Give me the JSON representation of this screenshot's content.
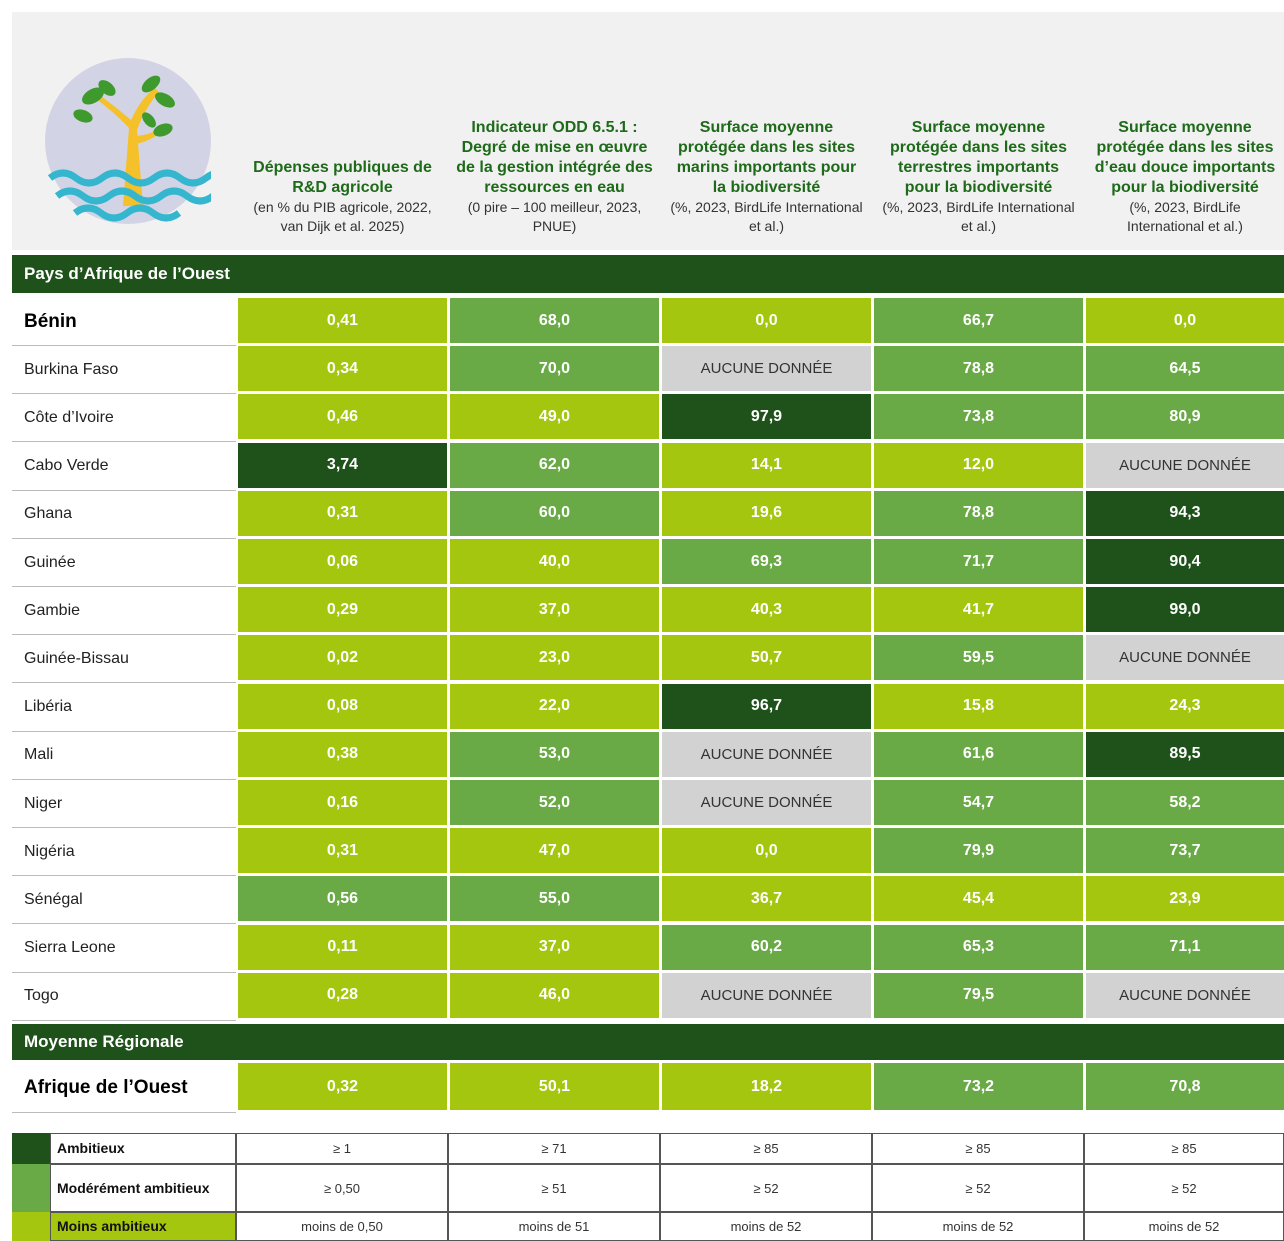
{
  "columns": [
    {
      "title": "Dépenses publiques de R&D agricole",
      "subtitle": "(en % du PIB agricole, 2022, van Dijk et al. 2025)"
    },
    {
      "title": "Indicateur ODD 6.5.1 : Degré de mise en œuvre de la gestion intégrée des ressources en eau",
      "subtitle": "(0 pire – 100 meilleur, 2023, PNUE)"
    },
    {
      "title": "Surface moyenne protégée dans les sites marins importants pour la biodiversité",
      "subtitle": "(%, 2023, BirdLife International et al.)"
    },
    {
      "title": "Surface moyenne protégée dans les sites terrestres importants pour la biodiversité",
      "subtitle": "(%, 2023, BirdLife International et al.)"
    },
    {
      "title": "Surface moyenne protégée dans les sites d’eau douce importants pour la biodiversité",
      "subtitle": "(%, 2023, BirdLife International et al.)"
    }
  ],
  "sections": [
    {
      "label": "Pays d’Afrique de l’Ouest",
      "rows": [
        {
          "name": "Bénin",
          "cells": [
            "0,41",
            "68,0",
            "0,0",
            "66,7",
            "0,0"
          ],
          "colors": [
            "#a5c60e",
            "#6aaa46",
            "#a5c60e",
            "#6aaa46",
            "#a5c60e"
          ]
        },
        {
          "name": "Burkina Faso",
          "cells": [
            "0,34",
            "70,0",
            "AUCUNE DONNÉE",
            "78,8",
            "64,5"
          ],
          "colors": [
            "#a5c60e",
            "#6aaa46",
            "#d2d2d2",
            "#6aaa46",
            "#6aaa46"
          ]
        },
        {
          "name": "Côte d’Ivoire",
          "cells": [
            "0,46",
            "49,0",
            "97,9",
            "73,8",
            "80,9"
          ],
          "colors": [
            "#a5c60e",
            "#a5c60e",
            "#1f521a",
            "#6aaa46",
            "#6aaa46"
          ]
        },
        {
          "name": "Cabo Verde",
          "cells": [
            "3,74",
            "62,0",
            "14,1",
            "12,0",
            "AUCUNE DONNÉE"
          ],
          "colors": [
            "#1f521a",
            "#6aaa46",
            "#a5c60e",
            "#a5c60e",
            "#d2d2d2"
          ]
        },
        {
          "name": "Ghana",
          "cells": [
            "0,31",
            "60,0",
            "19,6",
            "78,8",
            "94,3"
          ],
          "colors": [
            "#a5c60e",
            "#6aaa46",
            "#a5c60e",
            "#6aaa46",
            "#1f521a"
          ]
        },
        {
          "name": "Guinée",
          "cells": [
            "0,06",
            "40,0",
            "69,3",
            "71,7",
            "90,4"
          ],
          "colors": [
            "#a5c60e",
            "#a5c60e",
            "#6aaa46",
            "#6aaa46",
            "#1f521a"
          ]
        },
        {
          "name": "Gambie",
          "cells": [
            "0,29",
            "37,0",
            "40,3",
            "41,7",
            "99,0"
          ],
          "colors": [
            "#a5c60e",
            "#a5c60e",
            "#a5c60e",
            "#a5c60e",
            "#1f521a"
          ]
        },
        {
          "name": "Guinée-Bissau",
          "cells": [
            "0,02",
            "23,0",
            "50,7",
            "59,5",
            "AUCUNE DONNÉE"
          ],
          "colors": [
            "#a5c60e",
            "#a5c60e",
            "#a5c60e",
            "#6aaa46",
            "#d2d2d2"
          ]
        },
        {
          "name": "Libéria",
          "cells": [
            "0,08",
            "22,0",
            "96,7",
            "15,8",
            "24,3"
          ],
          "colors": [
            "#a5c60e",
            "#a5c60e",
            "#1f521a",
            "#a5c60e",
            "#a5c60e"
          ]
        },
        {
          "name": "Mali",
          "cells": [
            "0,38",
            "53,0",
            "AUCUNE DONNÉE",
            "61,6",
            "89,5"
          ],
          "colors": [
            "#a5c60e",
            "#6aaa46",
            "#d2d2d2",
            "#6aaa46",
            "#1f521a"
          ]
        },
        {
          "name": "Niger",
          "cells": [
            "0,16",
            "52,0",
            "AUCUNE DONNÉE",
            "54,7",
            "58,2"
          ],
          "colors": [
            "#a5c60e",
            "#6aaa46",
            "#d2d2d2",
            "#6aaa46",
            "#6aaa46"
          ]
        },
        {
          "name": "Nigéria",
          "cells": [
            "0,31",
            "47,0",
            "0,0",
            "79,9",
            "73,7"
          ],
          "colors": [
            "#a5c60e",
            "#a5c60e",
            "#a5c60e",
            "#6aaa46",
            "#6aaa46"
          ]
        },
        {
          "name": "Sénégal",
          "cells": [
            "0,56",
            "55,0",
            "36,7",
            "45,4",
            "23,9"
          ],
          "colors": [
            "#6aaa46",
            "#6aaa46",
            "#a5c60e",
            "#a5c60e",
            "#a5c60e"
          ]
        },
        {
          "name": "Sierra Leone",
          "cells": [
            "0,11",
            "37,0",
            "60,2",
            "65,3",
            "71,1"
          ],
          "colors": [
            "#a5c60e",
            "#a5c60e",
            "#6aaa46",
            "#6aaa46",
            "#6aaa46"
          ]
        },
        {
          "name": "Togo",
          "cells": [
            "0,28",
            "46,0",
            "AUCUNE DONNÉE",
            "79,5",
            "AUCUNE DONNÉE"
          ],
          "colors": [
            "#a5c60e",
            "#a5c60e",
            "#d2d2d2",
            "#6aaa46",
            "#d2d2d2"
          ]
        }
      ]
    },
    {
      "label": "Moyenne Régionale",
      "rows": [
        {
          "name": "Afrique de l’Ouest",
          "cells": [
            "0,32",
            "50,1",
            "18,2",
            "73,2",
            "70,8"
          ],
          "colors": [
            "#a5c60e",
            "#a5c60e",
            "#a5c60e",
            "#6aaa46",
            "#6aaa46"
          ]
        }
      ]
    }
  ],
  "legend": [
    {
      "label": "Ambitieux",
      "color": "#1f521a",
      "thresholds": [
        "≥ 1",
        "≥ 71",
        "≥ 85",
        "≥ 85",
        "≥ 85"
      ]
    },
    {
      "label": "Modérément ambitieux",
      "color": "#6aaa46",
      "thresholds": [
        "≥ 0,50",
        "≥ 51",
        "≥ 52",
        "≥ 52",
        "≥ 52"
      ]
    },
    {
      "label": "Moins ambitieux",
      "color": "#a5c60e",
      "thresholds": [
        "moins de 0,50",
        "moins de 51",
        "moins de 52",
        "moins de 52",
        "moins de 52"
      ]
    }
  ]
}
